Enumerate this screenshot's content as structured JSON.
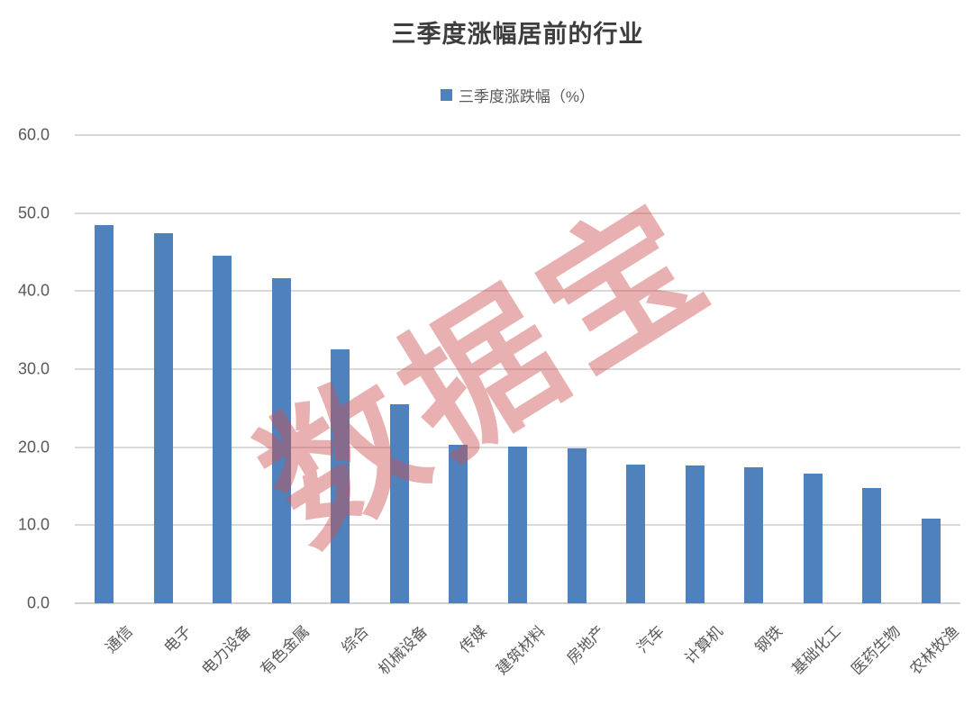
{
  "chart_data": {
    "type": "bar",
    "title": "三季度涨幅居前的行业",
    "legend": [
      "三季度涨跌幅（%）"
    ],
    "legend_position": "top",
    "categories": [
      "通信",
      "电子",
      "电力设备",
      "有色金属",
      "综合",
      "机械设备",
      "传媒",
      "建筑材料",
      "房地产",
      "汽车",
      "计算机",
      "钢铁",
      "基础化工",
      "医药生物",
      "农林牧渔"
    ],
    "values": [
      48.5,
      47.4,
      44.5,
      41.7,
      32.5,
      25.5,
      20.3,
      20.1,
      19.9,
      17.8,
      17.6,
      17.4,
      16.6,
      14.8,
      10.9
    ],
    "xlabel": "",
    "ylabel": "",
    "ylim": [
      0,
      60
    ],
    "ytick_labels": [
      "60.0",
      "50.0",
      "40.0",
      "30.0",
      "20.0",
      "10.0",
      "0.0"
    ],
    "grid": true,
    "bar_color": "#4F81BD",
    "gridline_color": "#D9D9D9",
    "axis_text_color": "#595959",
    "title_color": "#3D3D3D"
  },
  "watermark": {
    "text": "数据宝",
    "color": "rgba(205, 80, 80, 0.45)"
  }
}
